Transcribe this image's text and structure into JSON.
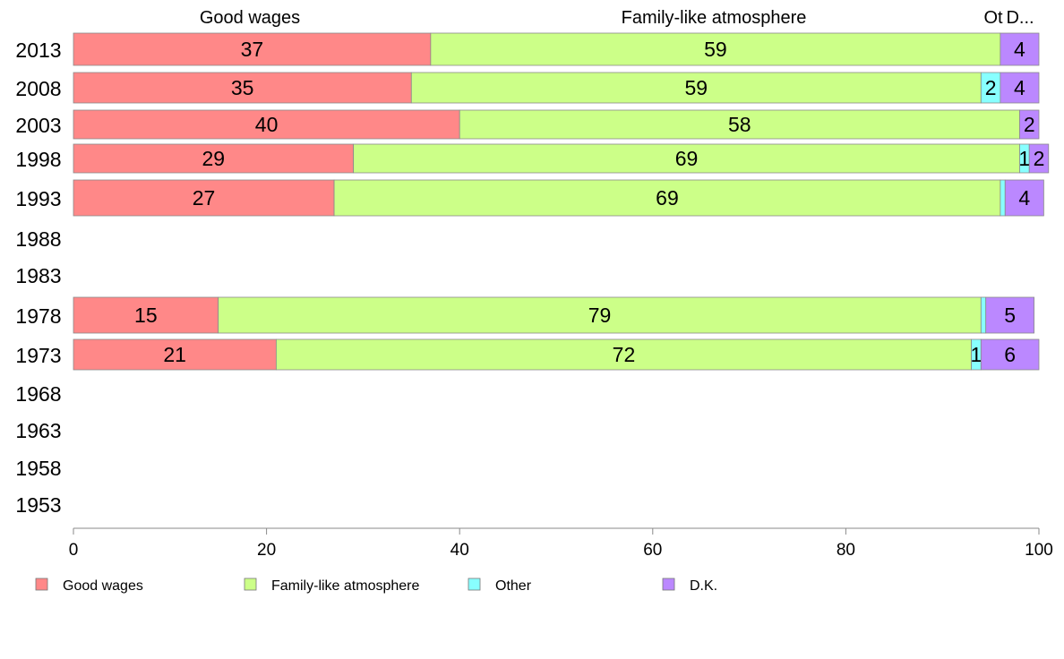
{
  "chart_data": {
    "type": "bar",
    "orientation": "horizontal",
    "stacked": true,
    "categories": [
      "2013",
      "2008",
      "2003",
      "1998",
      "1993",
      "1988",
      "1983",
      "1978",
      "1973",
      "1968",
      "1963",
      "1958",
      "1953"
    ],
    "series": [
      {
        "name": "Good wages",
        "color": "#FF8888",
        "values": [
          37,
          35,
          40,
          29,
          27,
          null,
          null,
          15,
          21,
          null,
          null,
          null,
          null
        ]
      },
      {
        "name": "Family-like atmosphere",
        "color": "#CCFF88",
        "values": [
          59,
          59,
          58,
          69,
          69,
          null,
          null,
          79,
          72,
          null,
          null,
          null,
          null
        ]
      },
      {
        "name": "Other",
        "color": "#88FFFF",
        "values": [
          0,
          2,
          0,
          1,
          0.5,
          null,
          null,
          0.5,
          1,
          null,
          null,
          null,
          null
        ]
      },
      {
        "name": "D.K.",
        "color": "#BB88FF",
        "values": [
          4,
          4,
          2,
          2,
          4,
          null,
          null,
          5,
          6,
          null,
          null,
          null,
          null
        ]
      }
    ],
    "data_labels": [
      [
        "37",
        "59",
        "",
        "4"
      ],
      [
        "35",
        "59",
        "2",
        "4"
      ],
      [
        "40",
        "58",
        "",
        "2"
      ],
      [
        "29",
        "69",
        "1",
        "2"
      ],
      [
        "27",
        "69",
        "",
        "4"
      ],
      null,
      null,
      [
        "15",
        "79",
        "",
        "5"
      ],
      [
        "21",
        "72",
        "1",
        "6"
      ],
      null,
      null,
      null,
      null
    ],
    "top_labels": [
      "Good wages",
      "Family-like atmosphere",
      "Ot",
      "D..."
    ],
    "xlim": [
      0,
      100
    ],
    "xticks": [
      "0",
      "20",
      "40",
      "60",
      "80",
      "100"
    ],
    "grid": false,
    "legend_position": "bottom",
    "legend": [
      "Good wages",
      "Family-like atmosphere",
      "Other",
      "D.K."
    ]
  }
}
